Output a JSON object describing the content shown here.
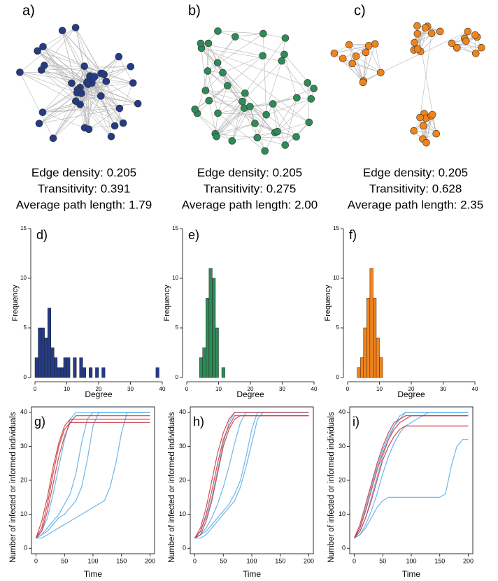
{
  "chart_data": [
    {
      "type": "network",
      "label": "a)",
      "color": "#253b86",
      "annotations": [
        "Edge density: 0.205",
        "Transitivity: 0.391",
        "Average path length: 1.79"
      ]
    },
    {
      "type": "network",
      "label": "b)",
      "color": "#2e8b57",
      "annotations": [
        "Edge density: 0.205",
        "Transitivity: 0.275",
        "Average path length: 2.00"
      ]
    },
    {
      "type": "network",
      "label": "c)",
      "color": "#f0841c",
      "annotations": [
        "Edge density: 0.205",
        "Transitivity: 0.628",
        "Average path length: 2.35"
      ]
    },
    {
      "type": "histogram",
      "label": "d)",
      "xlabel": "Degree",
      "ylabel": "Frequency",
      "color": "#253b86",
      "bins": [
        0,
        1,
        2,
        3,
        4,
        5,
        6,
        7,
        8,
        9,
        10,
        11,
        12,
        13,
        14,
        15,
        16,
        17,
        18,
        19,
        20,
        21,
        22,
        23,
        24,
        25,
        26,
        27,
        28,
        29,
        30,
        31,
        32,
        33,
        34,
        35,
        36,
        37,
        38,
        39,
        40
      ],
      "counts": [
        2,
        5,
        5,
        4,
        7,
        3,
        2,
        1,
        1,
        2,
        2,
        0,
        2,
        0,
        2,
        1,
        0,
        1,
        0,
        1,
        0,
        1,
        0,
        0,
        0,
        0,
        0,
        0,
        0,
        0,
        0,
        0,
        0,
        0,
        0,
        0,
        0,
        0,
        1,
        0
      ],
      "xlim": [
        0,
        40
      ],
      "ylim": [
        0,
        15
      ],
      "xticks": [
        0,
        10,
        20,
        30,
        40
      ],
      "yticks": [
        0,
        5,
        10,
        15
      ]
    },
    {
      "type": "histogram",
      "label": "e)",
      "xlabel": "Degree",
      "ylabel": "Frequency",
      "color": "#2e8b57",
      "bins": [
        4,
        5,
        6,
        7,
        8,
        9,
        10,
        11,
        12
      ],
      "counts": [
        2,
        3,
        8,
        11,
        10,
        5,
        0,
        1
      ],
      "xlim": [
        0,
        40
      ],
      "ylim": [
        0,
        15
      ],
      "xticks": [
        0,
        10,
        20,
        30,
        40
      ],
      "yticks": [
        0,
        5,
        10,
        15
      ]
    },
    {
      "type": "histogram",
      "label": "f)",
      "xlabel": "Degree",
      "ylabel": "Frequency",
      "color": "#f0841c",
      "bins": [
        3,
        4,
        5,
        6,
        7,
        8,
        9,
        10,
        11
      ],
      "counts": [
        1,
        2,
        5,
        8,
        11,
        8,
        4,
        2
      ],
      "xlim": [
        0,
        40
      ],
      "ylim": [
        0,
        15
      ],
      "xticks": [
        0,
        10,
        20,
        30,
        40
      ],
      "yticks": [
        0,
        5,
        10,
        15
      ]
    },
    {
      "type": "line",
      "label": "g)",
      "xlabel": "Time",
      "ylabel": "Number of infected or informed individuals",
      "x": [
        0,
        10,
        20,
        30,
        40,
        50,
        60,
        70,
        80,
        90,
        100,
        110,
        120,
        130,
        140,
        150,
        160,
        170,
        180,
        190,
        200
      ],
      "xlim": [
        -8,
        208
      ],
      "ylim": [
        -1.6,
        41.6
      ],
      "xticks": [
        0,
        50,
        100,
        150,
        200
      ],
      "yticks": [
        0,
        10,
        20,
        30,
        40
      ],
      "series": [
        {
          "color": "#56a9e6",
          "values": [
            3,
            4,
            5,
            7,
            9,
            10,
            12,
            14,
            18,
            26,
            36,
            40,
            40,
            40,
            40,
            40,
            40,
            40,
            40,
            40,
            40
          ]
        },
        {
          "color": "#56a9e6",
          "values": [
            3,
            3,
            4,
            5,
            6,
            7,
            8,
            9,
            10,
            11,
            12,
            13,
            14,
            18,
            25,
            34,
            40,
            40,
            40,
            40,
            40
          ]
        },
        {
          "color": "#56a9e6",
          "values": [
            3,
            5,
            9,
            16,
            24,
            32,
            38,
            40,
            40,
            40,
            40,
            40,
            40,
            40,
            40,
            40,
            40,
            40,
            40,
            40,
            40
          ]
        },
        {
          "color": "#56a9e6",
          "values": [
            3,
            4,
            6,
            8,
            10,
            13,
            16,
            22,
            31,
            38,
            40,
            40,
            40,
            40,
            40,
            40,
            40,
            40,
            40,
            40,
            40
          ]
        },
        {
          "color": "#c8333a",
          "values": [
            3,
            8,
            15,
            24,
            31,
            36,
            38,
            38,
            38,
            38,
            38,
            38,
            38,
            38,
            38,
            38,
            38,
            38,
            38,
            38,
            38
          ]
        },
        {
          "color": "#c8333a",
          "values": [
            3,
            5,
            11,
            19,
            27,
            33,
            37,
            39,
            39,
            39,
            39,
            39,
            39,
            39,
            39,
            39,
            39,
            39,
            39,
            39,
            39
          ]
        },
        {
          "color": "#c8333a",
          "values": [
            3,
            6,
            13,
            22,
            30,
            35,
            37,
            37,
            37,
            37,
            37,
            37,
            37,
            37,
            37,
            37,
            37,
            37,
            37,
            37,
            37
          ]
        }
      ]
    },
    {
      "type": "line",
      "label": "h)",
      "xlabel": "Time",
      "ylabel": "Number of infected or informed individuals",
      "x": [
        0,
        10,
        20,
        30,
        40,
        50,
        60,
        70,
        80,
        90,
        100,
        110,
        120,
        130,
        140,
        150,
        160,
        170,
        180,
        190,
        200
      ],
      "xlim": [
        -8,
        208
      ],
      "ylim": [
        -1.6,
        41.6
      ],
      "xticks": [
        0,
        50,
        100,
        150,
        200
      ],
      "yticks": [
        0,
        10,
        20,
        30,
        40
      ],
      "series": [
        {
          "color": "#56a9e6",
          "values": [
            3,
            4,
            6,
            9,
            13,
            18,
            24,
            31,
            37,
            40,
            40,
            40,
            40,
            40,
            40,
            40,
            40,
            40,
            40,
            40,
            40
          ]
        },
        {
          "color": "#56a9e6",
          "values": [
            3,
            4,
            5,
            7,
            9,
            11,
            13,
            16,
            20,
            27,
            35,
            40,
            40,
            40,
            40,
            40,
            40,
            40,
            40,
            40,
            40
          ]
        },
        {
          "color": "#56a9e6",
          "values": [
            3,
            5,
            9,
            15,
            23,
            31,
            37,
            40,
            40,
            40,
            40,
            40,
            40,
            40,
            40,
            40,
            40,
            40,
            40,
            40,
            40
          ]
        },
        {
          "color": "#56a9e6",
          "values": [
            3,
            3,
            4,
            6,
            8,
            10,
            12,
            14,
            18,
            24,
            31,
            38,
            40,
            40,
            40,
            40,
            40,
            40,
            40,
            40,
            40
          ]
        },
        {
          "color": "#c8333a",
          "values": [
            3,
            6,
            12,
            20,
            28,
            34,
            38,
            40,
            40,
            40,
            40,
            40,
            40,
            40,
            40,
            40,
            40,
            40,
            40,
            40,
            40
          ]
        },
        {
          "color": "#c8333a",
          "values": [
            3,
            5,
            10,
            17,
            25,
            32,
            36,
            39,
            39,
            39,
            39,
            39,
            39,
            39,
            39,
            39,
            39,
            39,
            39,
            39,
            39
          ]
        },
        {
          "color": "#c8333a",
          "values": [
            3,
            4,
            8,
            14,
            22,
            30,
            35,
            38,
            39,
            39,
            39,
            39,
            39,
            39,
            39,
            39,
            39,
            39,
            39,
            39,
            39
          ]
        }
      ]
    },
    {
      "type": "line",
      "label": "i)",
      "xlabel": "Time",
      "ylabel": "Number of infected or informed individuals",
      "x": [
        0,
        10,
        20,
        30,
        40,
        50,
        60,
        70,
        80,
        90,
        100,
        110,
        120,
        130,
        140,
        150,
        160,
        170,
        180,
        190,
        200
      ],
      "xlim": [
        -8,
        208
      ],
      "ylim": [
        -1.6,
        41.6
      ],
      "xticks": [
        0,
        50,
        100,
        150,
        200
      ],
      "yticks": [
        0,
        10,
        20,
        30,
        40
      ],
      "series": [
        {
          "color": "#56a9e6",
          "values": [
            3,
            5,
            9,
            15,
            21,
            27,
            32,
            36,
            39,
            40,
            40,
            40,
            40,
            40,
            40,
            40,
            40,
            40,
            40,
            40,
            40
          ]
        },
        {
          "color": "#56a9e6",
          "values": [
            3,
            4,
            7,
            11,
            16,
            22,
            27,
            31,
            34,
            36,
            37,
            38,
            39,
            40,
            40,
            40,
            40,
            40,
            40,
            40,
            40
          ]
        },
        {
          "color": "#56a9e6",
          "values": [
            3,
            4,
            6,
            9,
            12,
            14,
            15,
            15,
            15,
            15,
            15,
            15,
            15,
            15,
            15,
            15,
            16,
            24,
            30,
            32,
            32
          ]
        },
        {
          "color": "#56a9e6",
          "values": [
            3,
            6,
            12,
            18,
            24,
            29,
            33,
            36,
            38,
            40,
            40,
            40,
            40,
            40,
            40,
            40,
            40,
            40,
            40,
            40,
            40
          ]
        },
        {
          "color": "#c8333a",
          "values": [
            3,
            6,
            11,
            17,
            23,
            28,
            32,
            35,
            37,
            38,
            39,
            39,
            39,
            39,
            39,
            39,
            39,
            39,
            39,
            39,
            39
          ]
        },
        {
          "color": "#c8333a",
          "values": [
            3,
            5,
            9,
            14,
            20,
            26,
            30,
            33,
            35,
            36,
            36,
            36,
            36,
            36,
            36,
            36,
            36,
            36,
            36,
            36,
            36
          ]
        },
        {
          "color": "#c8333a",
          "values": [
            3,
            7,
            13,
            19,
            25,
            30,
            34,
            37,
            38,
            39,
            39,
            39,
            39,
            39,
            39,
            39,
            39,
            39,
            39,
            39,
            39
          ]
        }
      ]
    }
  ]
}
